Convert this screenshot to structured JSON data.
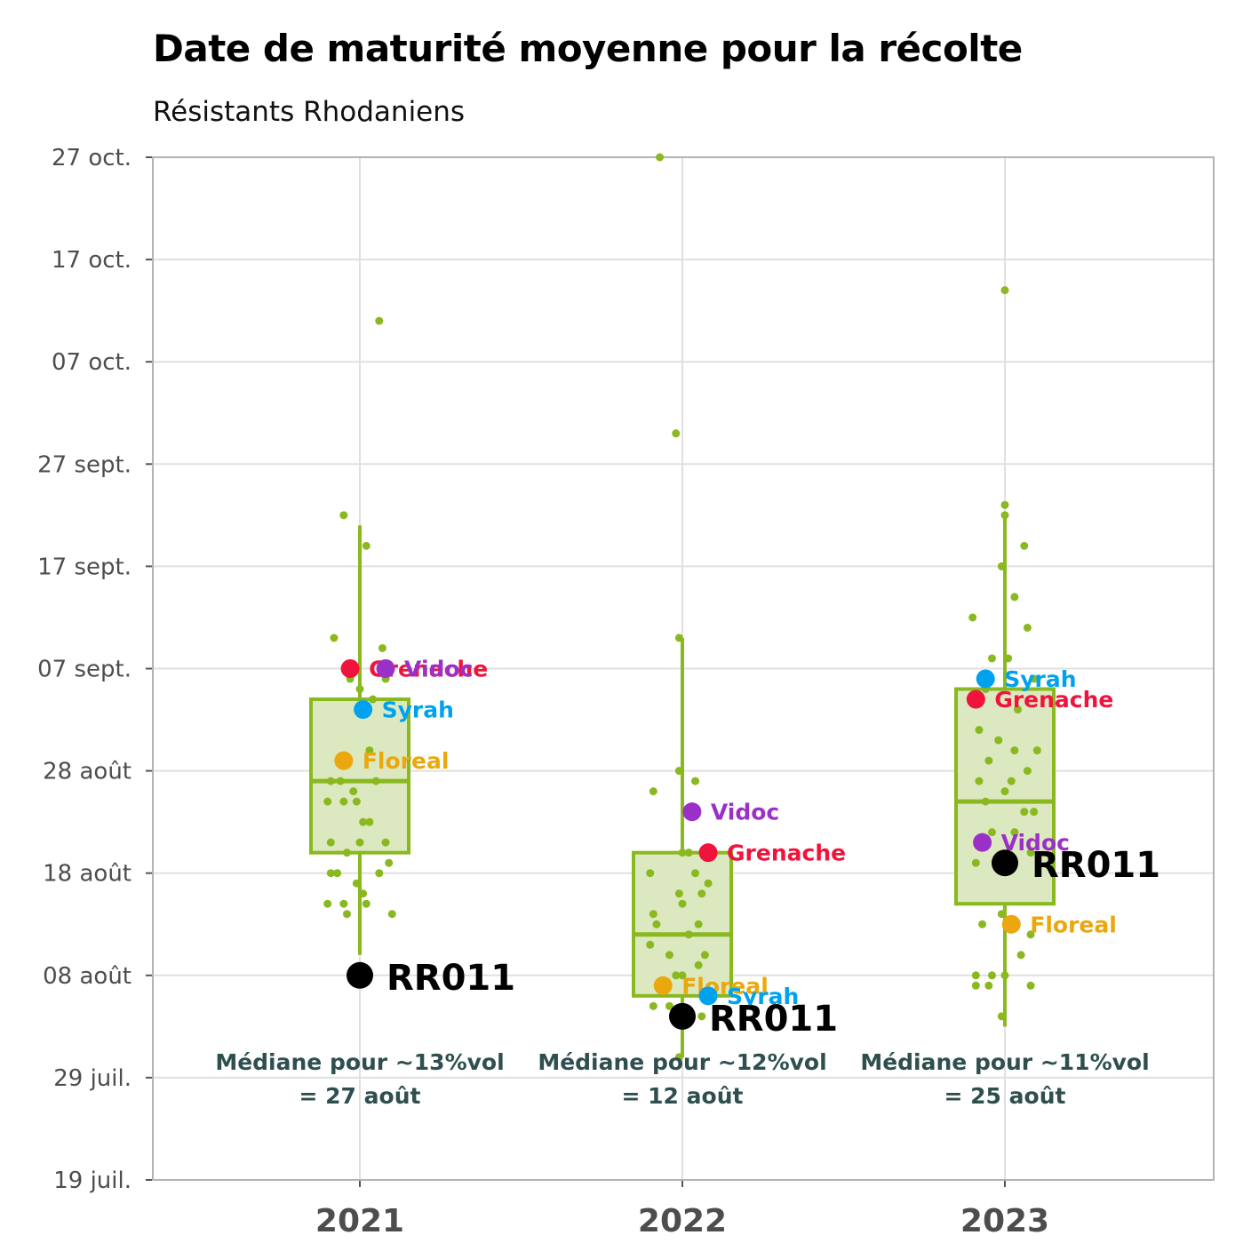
{
  "chart_data": {
    "type": "box",
    "title": "Date de maturité moyenne pour la récolte",
    "subtitle": "Résistants Rhodaniens",
    "xlabel": "",
    "ylabel": "",
    "categories": [
      "2021",
      "2022",
      "2023"
    ],
    "y_range": [
      "2000-07-19",
      "2000-10-27"
    ],
    "y_ticks": [
      {
        "date": "2000-07-19",
        "label": "19 juil."
      },
      {
        "date": "2000-07-29",
        "label": "29 juil."
      },
      {
        "date": "2000-08-08",
        "label": "08 août"
      },
      {
        "date": "2000-08-18",
        "label": "18 août"
      },
      {
        "date": "2000-08-28",
        "label": "28 août"
      },
      {
        "date": "2000-09-07",
        "label": "07 sept."
      },
      {
        "date": "2000-09-17",
        "label": "17 sept."
      },
      {
        "date": "2000-09-27",
        "label": "27 sept."
      },
      {
        "date": "2000-10-07",
        "label": "07 oct."
      },
      {
        "date": "2000-10-17",
        "label": "17 oct."
      },
      {
        "date": "2000-10-27",
        "label": "27 oct."
      }
    ],
    "grid": true,
    "colors": {
      "box": "#8ab81f",
      "box_fill": "#dce9c0",
      "Grenache": "#f0143c",
      "Vidoc": "#9b30c8",
      "Syrah": "#00a2f0",
      "Floreal": "#eaa80e",
      "RR011": "#000000",
      "note": "#2f4f4f"
    },
    "boxes": [
      {
        "category": "2021",
        "whisker_low": "2000-08-10",
        "q1": "2000-08-20",
        "median": "2000-08-27",
        "q3": "2000-09-04",
        "whisker_high": "2000-09-21"
      },
      {
        "category": "2022",
        "whisker_low": "2000-07-31",
        "q1": "2000-08-06",
        "median": "2000-08-12",
        "q3": "2000-08-20",
        "whisker_high": "2000-09-10"
      },
      {
        "category": "2023",
        "whisker_low": "2000-08-03",
        "q1": "2000-08-15",
        "median": "2000-08-25",
        "q3": "2000-09-05",
        "whisker_high": "2000-09-22"
      }
    ],
    "points": [
      {
        "category": "2021",
        "offset": -0.05,
        "date": "2000-09-22"
      },
      {
        "category": "2021",
        "offset": 0.02,
        "date": "2000-09-19"
      },
      {
        "category": "2021",
        "offset": -0.08,
        "date": "2000-09-10"
      },
      {
        "category": "2021",
        "offset": 0.07,
        "date": "2000-09-09"
      },
      {
        "category": "2021",
        "offset": 0.06,
        "date": "2000-10-11"
      },
      {
        "category": "2021",
        "offset": 0.0,
        "date": "2000-09-05"
      },
      {
        "category": "2021",
        "offset": 0.04,
        "date": "2000-09-04"
      },
      {
        "category": "2021",
        "offset": 0.08,
        "date": "2000-09-06"
      },
      {
        "category": "2021",
        "offset": -0.03,
        "date": "2000-09-06"
      },
      {
        "category": "2021",
        "offset": 0.03,
        "date": "2000-08-30"
      },
      {
        "category": "2021",
        "offset": -0.06,
        "date": "2000-08-27"
      },
      {
        "category": "2021",
        "offset": -0.09,
        "date": "2000-08-27"
      },
      {
        "category": "2021",
        "offset": 0.05,
        "date": "2000-08-27"
      },
      {
        "category": "2021",
        "offset": -0.02,
        "date": "2000-08-26"
      },
      {
        "category": "2021",
        "offset": -0.1,
        "date": "2000-08-25"
      },
      {
        "category": "2021",
        "offset": -0.05,
        "date": "2000-08-25"
      },
      {
        "category": "2021",
        "offset": -0.01,
        "date": "2000-08-25"
      },
      {
        "category": "2021",
        "offset": 0.01,
        "date": "2000-08-23"
      },
      {
        "category": "2021",
        "offset": 0.03,
        "date": "2000-08-23"
      },
      {
        "category": "2021",
        "offset": -0.09,
        "date": "2000-08-21"
      },
      {
        "category": "2021",
        "offset": 0.0,
        "date": "2000-08-21"
      },
      {
        "category": "2021",
        "offset": 0.08,
        "date": "2000-08-21"
      },
      {
        "category": "2021",
        "offset": -0.04,
        "date": "2000-08-20"
      },
      {
        "category": "2021",
        "offset": 0.09,
        "date": "2000-08-19"
      },
      {
        "category": "2021",
        "offset": -0.09,
        "date": "2000-08-18"
      },
      {
        "category": "2021",
        "offset": -0.07,
        "date": "2000-08-18"
      },
      {
        "category": "2021",
        "offset": 0.06,
        "date": "2000-08-18"
      },
      {
        "category": "2021",
        "offset": -0.01,
        "date": "2000-08-17"
      },
      {
        "category": "2021",
        "offset": 0.01,
        "date": "2000-08-16"
      },
      {
        "category": "2021",
        "offset": -0.1,
        "date": "2000-08-15"
      },
      {
        "category": "2021",
        "offset": -0.05,
        "date": "2000-08-15"
      },
      {
        "category": "2021",
        "offset": 0.02,
        "date": "2000-08-15"
      },
      {
        "category": "2021",
        "offset": -0.04,
        "date": "2000-08-14"
      },
      {
        "category": "2021",
        "offset": 0.1,
        "date": "2000-08-14"
      },
      {
        "category": "2022",
        "offset": -0.07,
        "date": "2000-10-27"
      },
      {
        "category": "2022",
        "offset": -0.02,
        "date": "2000-09-30"
      },
      {
        "category": "2022",
        "offset": -0.01,
        "date": "2000-09-10"
      },
      {
        "category": "2022",
        "offset": -0.09,
        "date": "2000-08-26"
      },
      {
        "category": "2022",
        "offset": -0.01,
        "date": "2000-08-28"
      },
      {
        "category": "2022",
        "offset": 0.04,
        "date": "2000-08-27"
      },
      {
        "category": "2022",
        "offset": 0.0,
        "date": "2000-08-20"
      },
      {
        "category": "2022",
        "offset": 0.02,
        "date": "2000-08-20"
      },
      {
        "category": "2022",
        "offset": -0.1,
        "date": "2000-08-18"
      },
      {
        "category": "2022",
        "offset": 0.04,
        "date": "2000-08-18"
      },
      {
        "category": "2022",
        "offset": 0.08,
        "date": "2000-08-17"
      },
      {
        "category": "2022",
        "offset": 0.06,
        "date": "2000-08-16"
      },
      {
        "category": "2022",
        "offset": -0.01,
        "date": "2000-08-16"
      },
      {
        "category": "2022",
        "offset": 0.0,
        "date": "2000-08-15"
      },
      {
        "category": "2022",
        "offset": -0.09,
        "date": "2000-08-14"
      },
      {
        "category": "2022",
        "offset": -0.08,
        "date": "2000-08-13"
      },
      {
        "category": "2022",
        "offset": 0.05,
        "date": "2000-08-13"
      },
      {
        "category": "2022",
        "offset": 0.02,
        "date": "2000-08-12"
      },
      {
        "category": "2022",
        "offset": -0.1,
        "date": "2000-08-11"
      },
      {
        "category": "2022",
        "offset": 0.07,
        "date": "2000-08-10"
      },
      {
        "category": "2022",
        "offset": -0.04,
        "date": "2000-08-10"
      },
      {
        "category": "2022",
        "offset": 0.05,
        "date": "2000-08-09"
      },
      {
        "category": "2022",
        "offset": -0.02,
        "date": "2000-08-08"
      },
      {
        "category": "2022",
        "offset": 0.0,
        "date": "2000-08-08"
      },
      {
        "category": "2022",
        "offset": 0.08,
        "date": "2000-08-06"
      },
      {
        "category": "2022",
        "offset": -0.09,
        "date": "2000-08-05"
      },
      {
        "category": "2022",
        "offset": -0.04,
        "date": "2000-08-05"
      },
      {
        "category": "2022",
        "offset": 0.06,
        "date": "2000-08-04"
      },
      {
        "category": "2022",
        "offset": -0.01,
        "date": "2000-07-31"
      },
      {
        "category": "2023",
        "offset": 0.0,
        "date": "2000-10-14"
      },
      {
        "category": "2023",
        "offset": 0.0,
        "date": "2000-09-23"
      },
      {
        "category": "2023",
        "offset": 0.0,
        "date": "2000-09-22"
      },
      {
        "category": "2023",
        "offset": 0.06,
        "date": "2000-09-19"
      },
      {
        "category": "2023",
        "offset": -0.01,
        "date": "2000-09-17"
      },
      {
        "category": "2023",
        "offset": -0.1,
        "date": "2000-09-12"
      },
      {
        "category": "2023",
        "offset": 0.03,
        "date": "2000-09-14"
      },
      {
        "category": "2023",
        "offset": 0.07,
        "date": "2000-09-11"
      },
      {
        "category": "2023",
        "offset": -0.04,
        "date": "2000-09-08"
      },
      {
        "category": "2023",
        "offset": 0.01,
        "date": "2000-09-08"
      },
      {
        "category": "2023",
        "offset": 0.09,
        "date": "2000-09-06"
      },
      {
        "category": "2023",
        "offset": -0.06,
        "date": "2000-09-05"
      },
      {
        "category": "2023",
        "offset": 0.04,
        "date": "2000-09-03"
      },
      {
        "category": "2023",
        "offset": -0.08,
        "date": "2000-09-01"
      },
      {
        "category": "2023",
        "offset": -0.02,
        "date": "2000-08-31"
      },
      {
        "category": "2023",
        "offset": 0.03,
        "date": "2000-08-30"
      },
      {
        "category": "2023",
        "offset": 0.1,
        "date": "2000-08-30"
      },
      {
        "category": "2023",
        "offset": -0.05,
        "date": "2000-08-29"
      },
      {
        "category": "2023",
        "offset": 0.07,
        "date": "2000-08-28"
      },
      {
        "category": "2023",
        "offset": -0.08,
        "date": "2000-08-27"
      },
      {
        "category": "2023",
        "offset": 0.02,
        "date": "2000-08-27"
      },
      {
        "category": "2023",
        "offset": 0.0,
        "date": "2000-08-26"
      },
      {
        "category": "2023",
        "offset": -0.06,
        "date": "2000-08-25"
      },
      {
        "category": "2023",
        "offset": 0.06,
        "date": "2000-08-24"
      },
      {
        "category": "2023",
        "offset": 0.09,
        "date": "2000-08-24"
      },
      {
        "category": "2023",
        "offset": -0.04,
        "date": "2000-08-22"
      },
      {
        "category": "2023",
        "offset": 0.03,
        "date": "2000-08-22"
      },
      {
        "category": "2023",
        "offset": 0.08,
        "date": "2000-08-20"
      },
      {
        "category": "2023",
        "offset": -0.09,
        "date": "2000-08-19"
      },
      {
        "category": "2023",
        "offset": 0.01,
        "date": "2000-08-19"
      },
      {
        "category": "2023",
        "offset": -0.01,
        "date": "2000-08-14"
      },
      {
        "category": "2023",
        "offset": -0.07,
        "date": "2000-08-13"
      },
      {
        "category": "2023",
        "offset": 0.08,
        "date": "2000-08-12"
      },
      {
        "category": "2023",
        "offset": 0.05,
        "date": "2000-08-10"
      },
      {
        "category": "2023",
        "offset": -0.09,
        "date": "2000-08-08"
      },
      {
        "category": "2023",
        "offset": -0.04,
        "date": "2000-08-08"
      },
      {
        "category": "2023",
        "offset": 0.0,
        "date": "2000-08-08"
      },
      {
        "category": "2023",
        "offset": -0.09,
        "date": "2000-08-07"
      },
      {
        "category": "2023",
        "offset": -0.05,
        "date": "2000-08-07"
      },
      {
        "category": "2023",
        "offset": 0.08,
        "date": "2000-08-07"
      },
      {
        "category": "2023",
        "offset": -0.01,
        "date": "2000-08-04"
      }
    ],
    "highlights": [
      {
        "category": "2021",
        "offset": -0.03,
        "date": "2000-09-07",
        "label": "Grenache",
        "color": "#f0143c"
      },
      {
        "category": "2021",
        "offset": 0.08,
        "date": "2000-09-07",
        "label": "Vidoc",
        "color": "#9b30c8"
      },
      {
        "category": "2021",
        "offset": 0.01,
        "date": "2000-09-03",
        "label": "Syrah",
        "color": "#00a2f0"
      },
      {
        "category": "2021",
        "offset": -0.05,
        "date": "2000-08-29",
        "label": "Floreal",
        "color": "#eaa80e"
      },
      {
        "category": "2021",
        "offset": 0.0,
        "date": "2000-08-08",
        "label": "RR011",
        "color": "#000000",
        "big": true
      },
      {
        "category": "2022",
        "offset": 0.03,
        "date": "2000-08-24",
        "label": "Vidoc",
        "color": "#9b30c8"
      },
      {
        "category": "2022",
        "offset": 0.08,
        "date": "2000-08-20",
        "label": "Grenache",
        "color": "#f0143c"
      },
      {
        "category": "2022",
        "offset": -0.06,
        "date": "2000-08-07",
        "label": "Floreal",
        "color": "#eaa80e"
      },
      {
        "category": "2022",
        "offset": 0.08,
        "date": "2000-08-06",
        "label": "Syrah",
        "color": "#00a2f0"
      },
      {
        "category": "2022",
        "offset": 0.0,
        "date": "2000-08-04",
        "label": "RR011",
        "color": "#000000",
        "big": true
      },
      {
        "category": "2023",
        "offset": -0.06,
        "date": "2000-09-06",
        "label": "Syrah",
        "color": "#00a2f0"
      },
      {
        "category": "2023",
        "offset": -0.09,
        "date": "2000-09-04",
        "label": "Grenache",
        "color": "#f0143c"
      },
      {
        "category": "2023",
        "offset": -0.07,
        "date": "2000-08-21",
        "label": "Vidoc",
        "color": "#9b30c8"
      },
      {
        "category": "2023",
        "offset": 0.0,
        "date": "2000-08-19",
        "label": "RR011",
        "color": "#000000",
        "big": true
      },
      {
        "category": "2023",
        "offset": 0.02,
        "date": "2000-08-13",
        "label": "Floreal",
        "color": "#eaa80e"
      }
    ],
    "annotations": [
      {
        "category": "2021",
        "line1": "Médiane pour ~13%vol",
        "line2": "= 27 août"
      },
      {
        "category": "2022",
        "line1": "Médiane pour ~12%vol",
        "line2": "= 12 août"
      },
      {
        "category": "2023",
        "line1": "Médiane pour ~11%vol",
        "line2": "= 25 août"
      }
    ]
  }
}
